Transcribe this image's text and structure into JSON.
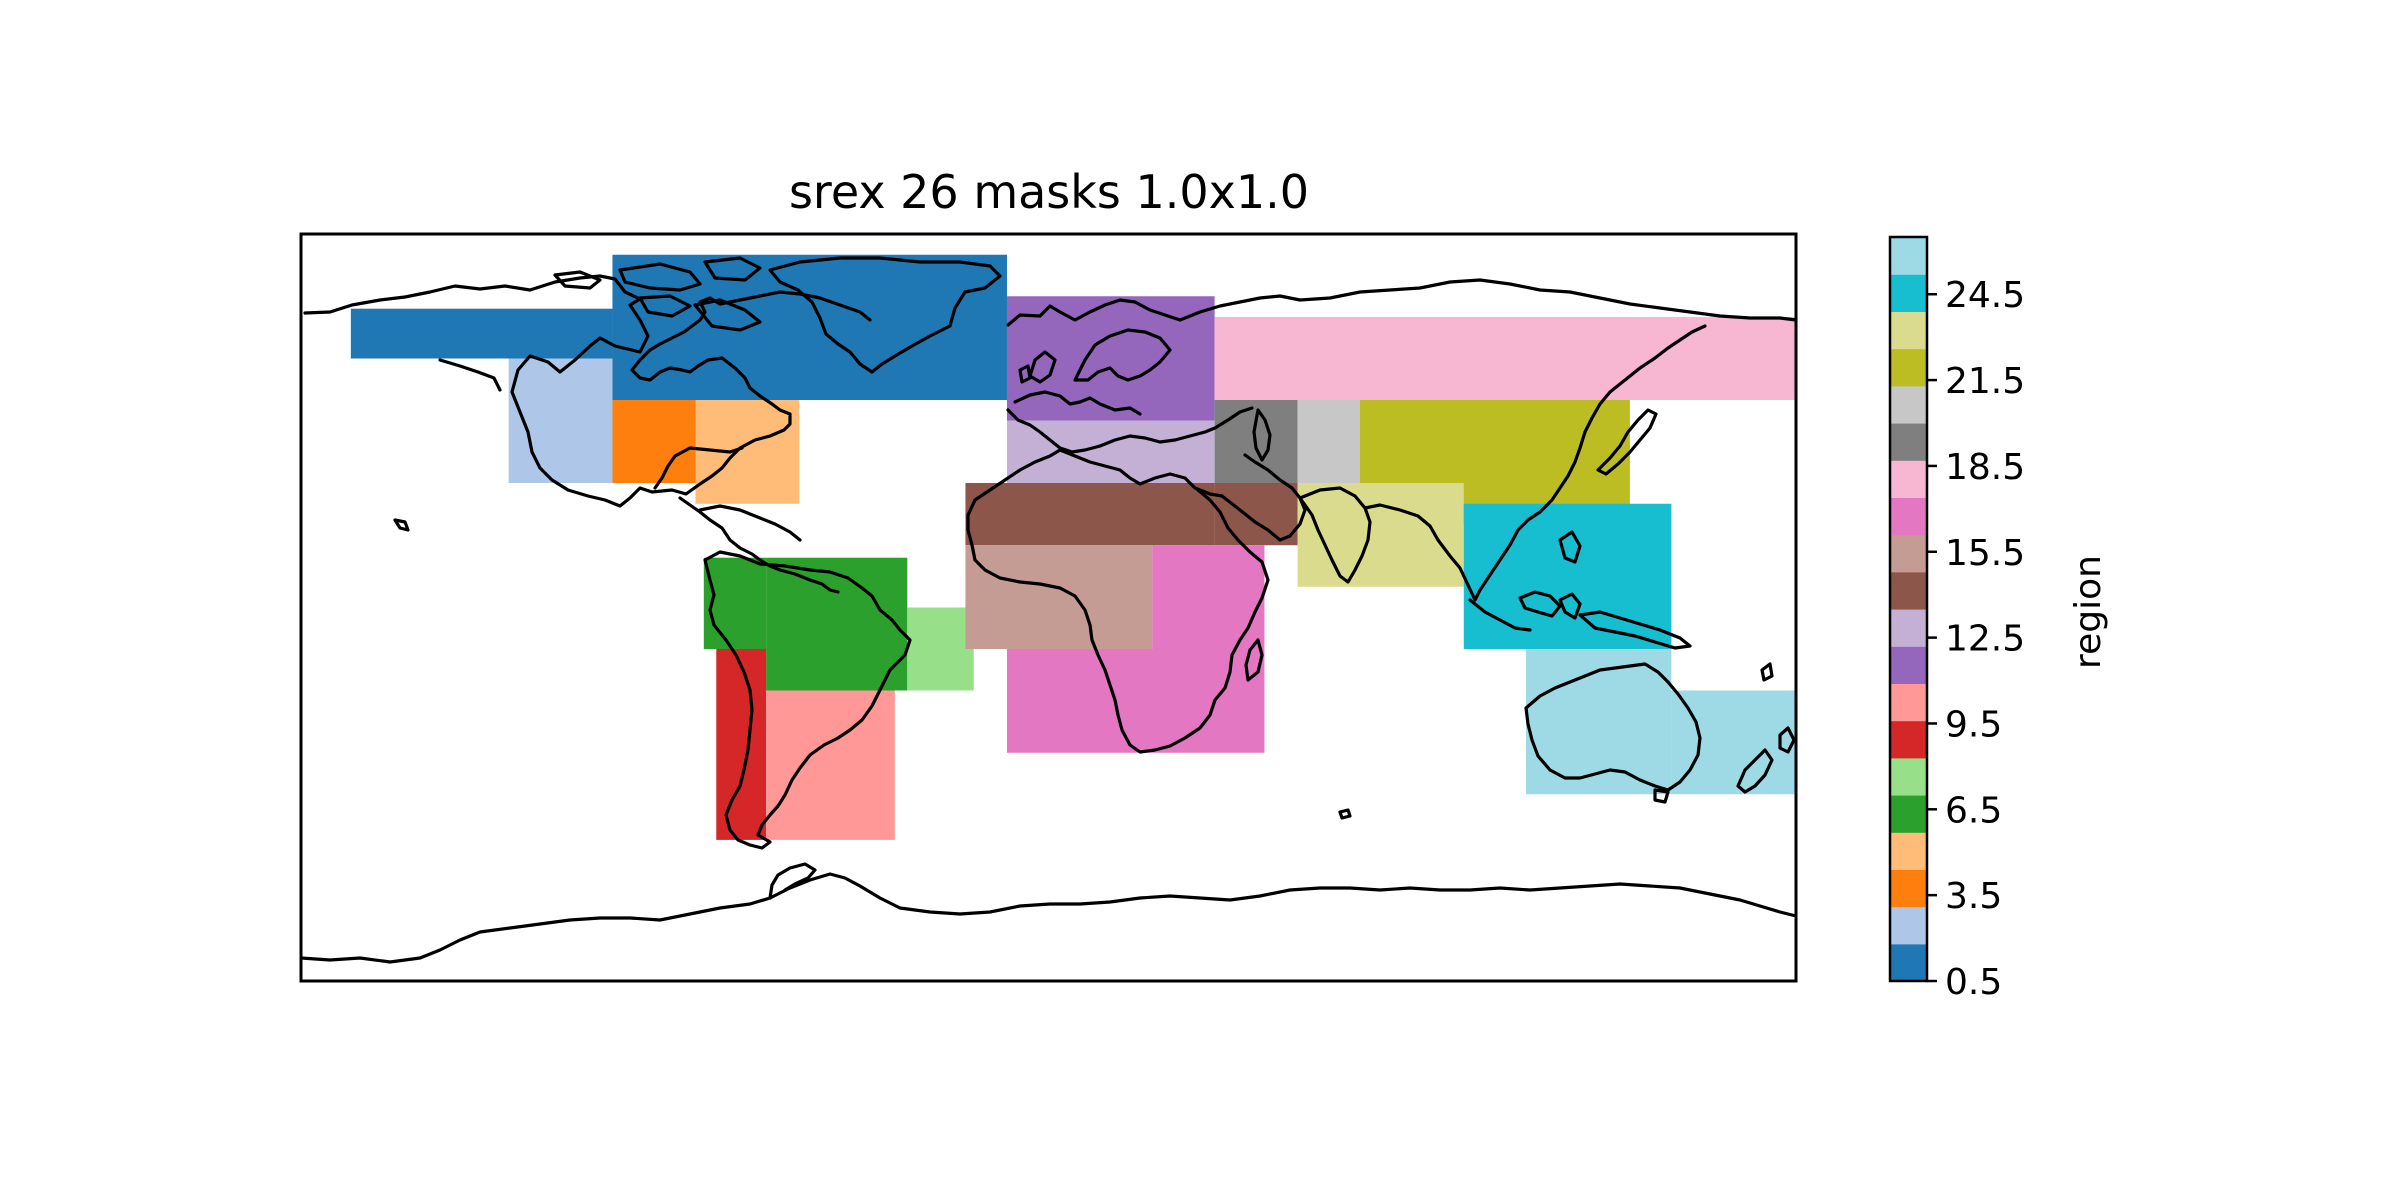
{
  "title": "srex 26 masks 1.0x1.0",
  "colorbar": {
    "label": "region",
    "ticks": [
      "0.5",
      "3.5",
      "6.5",
      "9.5",
      "12.5",
      "15.5",
      "18.5",
      "21.5",
      "24.5"
    ],
    "range": [
      0.5,
      26.5
    ],
    "colors": [
      "#1f77b4",
      "#aec7e8",
      "#ff7f0e",
      "#ffbb78",
      "#2ca02c",
      "#98df8a",
      "#d62728",
      "#ff9896",
      "#9467bd",
      "#c5b0d5",
      "#8c564b",
      "#c49c94",
      "#e377c2",
      "#f7b6d2",
      "#7f7f7f",
      "#c7c7c7",
      "#bcbd22",
      "#dbdb8d",
      "#17becf",
      "#9edae5"
    ]
  },
  "map_data": {
    "projection": "PlateCarree",
    "extent": {
      "lon": [
        -180,
        180
      ],
      "lat": [
        -90,
        90
      ]
    },
    "regions": [
      {
        "id": 1,
        "color": "#1f77b4",
        "boxes": [
          [
            -168,
            -105,
            60,
            72
          ],
          [
            -105,
            -10,
            50,
            85
          ]
        ]
      },
      {
        "id": 2,
        "color": "#aec7e8",
        "boxes": [
          [
            -130,
            -105,
            30,
            60
          ]
        ]
      },
      {
        "id": 3,
        "color": "#ff7f0e",
        "boxes": [
          [
            -105,
            -85,
            30,
            50
          ]
        ]
      },
      {
        "id": 4,
        "color": "#ffbb78",
        "boxes": [
          [
            -85,
            -60,
            25,
            50
          ]
        ]
      },
      {
        "id": 6,
        "color": "#2ca02c",
        "boxes": [
          [
            -83,
            -68,
            -10,
            12
          ],
          [
            -68,
            -34,
            -20,
            12
          ]
        ]
      },
      {
        "id": 7,
        "color": "#98df8a",
        "boxes": [
          [
            -34,
            -18,
            -20,
            0
          ]
        ]
      },
      {
        "id": 9,
        "color": "#d62728",
        "boxes": [
          [
            -80,
            -68,
            -56,
            -10
          ]
        ]
      },
      {
        "id": 10,
        "color": "#ff9896",
        "boxes": [
          [
            -68,
            -37,
            -56,
            -20
          ]
        ]
      },
      {
        "id": 11,
        "color": "#9467bd",
        "boxes": [
          [
            -10,
            40,
            45,
            75
          ]
        ]
      },
      {
        "id": 12,
        "color": "#c5b0d5",
        "boxes": [
          [
            -10,
            40,
            30,
            45
          ]
        ]
      },
      {
        "id": 13,
        "color": "#8c564b",
        "boxes": [
          [
            -20,
            40,
            15,
            30
          ],
          [
            40,
            60,
            15,
            30
          ]
        ]
      },
      {
        "id": 14,
        "color": "#c49c94",
        "boxes": [
          [
            -20,
            25,
            -10,
            15
          ]
        ]
      },
      {
        "id": 15,
        "color": "#e377c2",
        "boxes": [
          [
            -10,
            52,
            -35,
            -10
          ],
          [
            25,
            52,
            -10,
            15
          ]
        ]
      },
      {
        "id": 16,
        "color": "#f7b6d2",
        "boxes": [
          [
            40,
            180,
            50,
            70
          ]
        ]
      },
      {
        "id": 17,
        "color": "#7f7f7f",
        "boxes": [
          [
            40,
            60,
            30,
            50
          ]
        ]
      },
      {
        "id": 18,
        "color": "#c7c7c7",
        "boxes": [
          [
            60,
            75,
            30,
            50
          ]
        ]
      },
      {
        "id": 19,
        "color": "#bcbd22",
        "boxes": [
          [
            75,
            140,
            20,
            50
          ]
        ]
      },
      {
        "id": 20,
        "color": "#dbdb8d",
        "boxes": [
          [
            60,
            100,
            5,
            30
          ]
        ]
      },
      {
        "id": 21,
        "color": "#17becf",
        "boxes": [
          [
            100,
            150,
            -10,
            25
          ]
        ]
      },
      {
        "id": 22,
        "color": "#9edae5",
        "boxes": [
          [
            115,
            150,
            -45,
            -10
          ],
          [
            150,
            180,
            -45,
            -20
          ]
        ]
      }
    ]
  }
}
